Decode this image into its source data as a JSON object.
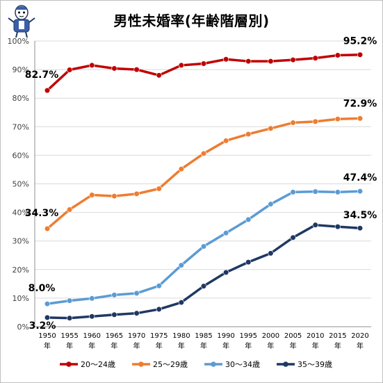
{
  "chart_data": {
    "type": "line",
    "title": "男性未婚率(年齢階層別)",
    "x": [
      "1950",
      "1955",
      "1960",
      "1965",
      "1970",
      "1975",
      "1980",
      "1985",
      "1990",
      "1995",
      "2000",
      "2005",
      "2010",
      "2015",
      "2020"
    ],
    "x_suffix": "年",
    "ylim": [
      0,
      100
    ],
    "yticks": [
      "0%",
      "10%",
      "20%",
      "30%",
      "40%",
      "50%",
      "60%",
      "70%",
      "80%",
      "90%",
      "100%"
    ],
    "grid": true,
    "legend_position": "bottom",
    "series": [
      {
        "name": "20～24歳",
        "color": "#c00000",
        "values": [
          82.7,
          89.9,
          91.5,
          90.4,
          90.0,
          88.0,
          91.5,
          92.1,
          93.6,
          92.9,
          92.9,
          93.4,
          94.0,
          95.0,
          95.2
        ]
      },
      {
        "name": "25～29歳",
        "color": "#ed7d31",
        "values": [
          34.3,
          41.0,
          46.1,
          45.7,
          46.5,
          48.3,
          55.2,
          60.6,
          65.1,
          67.4,
          69.4,
          71.4,
          71.8,
          72.7,
          72.9
        ]
      },
      {
        "name": "30～34歳",
        "color": "#5b9bd5",
        "values": [
          8.0,
          9.1,
          9.9,
          11.1,
          11.7,
          14.3,
          21.5,
          28.1,
          32.8,
          37.5,
          42.9,
          47.1,
          47.3,
          47.1,
          47.4
        ]
      },
      {
        "name": "35～39歳",
        "color": "#1f3864",
        "values": [
          3.2,
          3.0,
          3.6,
          4.2,
          4.7,
          6.1,
          8.5,
          14.2,
          19.0,
          22.6,
          25.7,
          31.2,
          35.6,
          35.0,
          34.5
        ]
      }
    ],
    "annotations": [
      {
        "series": 0,
        "point": "first",
        "text": "82.7%"
      },
      {
        "series": 0,
        "point": "last",
        "text": "95.2%"
      },
      {
        "series": 1,
        "point": "first",
        "text": "34.3%"
      },
      {
        "series": 1,
        "point": "last",
        "text": "72.9%"
      },
      {
        "series": 2,
        "point": "first",
        "text": "8.0%"
      },
      {
        "series": 2,
        "point": "last",
        "text": "47.4%"
      },
      {
        "series": 3,
        "point": "first",
        "text": "3.2%"
      },
      {
        "series": 3,
        "point": "last",
        "text": "34.5%"
      }
    ]
  },
  "mascot_icon": "mascot-character-icon"
}
